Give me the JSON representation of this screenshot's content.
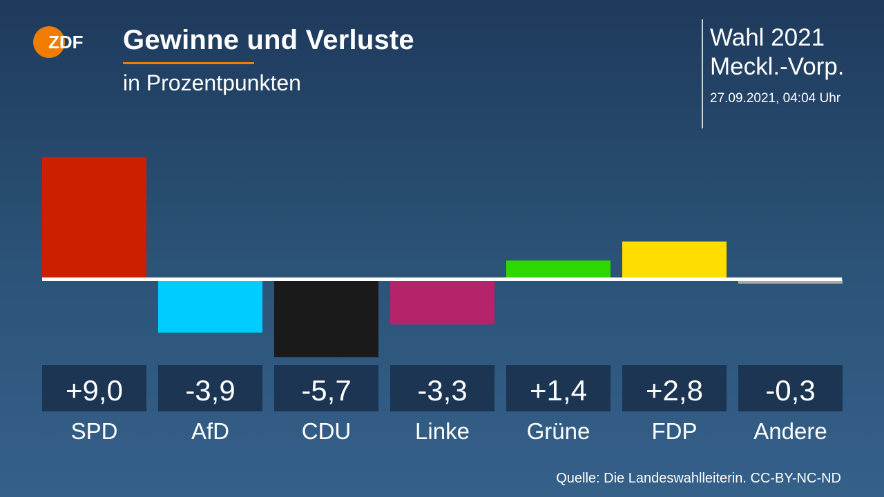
{
  "header": {
    "title": "Gewinne und Verluste",
    "subtitle": "in Prozentpunkten",
    "election_line1": "Wahl 2021",
    "election_line2": "Meckl.-Vorp.",
    "timestamp": "27.09.2021, 04:04 Uhr",
    "logo_text": "ZDF"
  },
  "colors": {
    "accent": "#f07d00",
    "baseline": "#ffffff",
    "value_box": "#1b3553"
  },
  "chart_data": {
    "type": "bar",
    "title": "Gewinne und Verluste",
    "subtitle": "in Prozentpunkten",
    "categories": [
      "SPD",
      "AfD",
      "CDU",
      "Linke",
      "Grüne",
      "FDP",
      "Andere"
    ],
    "values": [
      9.0,
      -3.9,
      -5.7,
      -3.3,
      1.4,
      2.8,
      -0.3
    ],
    "value_labels": [
      "+9,0",
      "-3,9",
      "-5,7",
      "-3,3",
      "+1,4",
      "+2,8",
      "-0,3"
    ],
    "colors": [
      "#cc1f00",
      "#00ccff",
      "#1a1a1a",
      "#b5236a",
      "#2ed700",
      "#ffdd00",
      "#a9a9a9"
    ],
    "ylim": [
      -9,
      10
    ],
    "grid": false,
    "legend": "none"
  },
  "footer": {
    "source": "Quelle: Die Landeswahlleiterin. CC-BY-NC-ND"
  }
}
